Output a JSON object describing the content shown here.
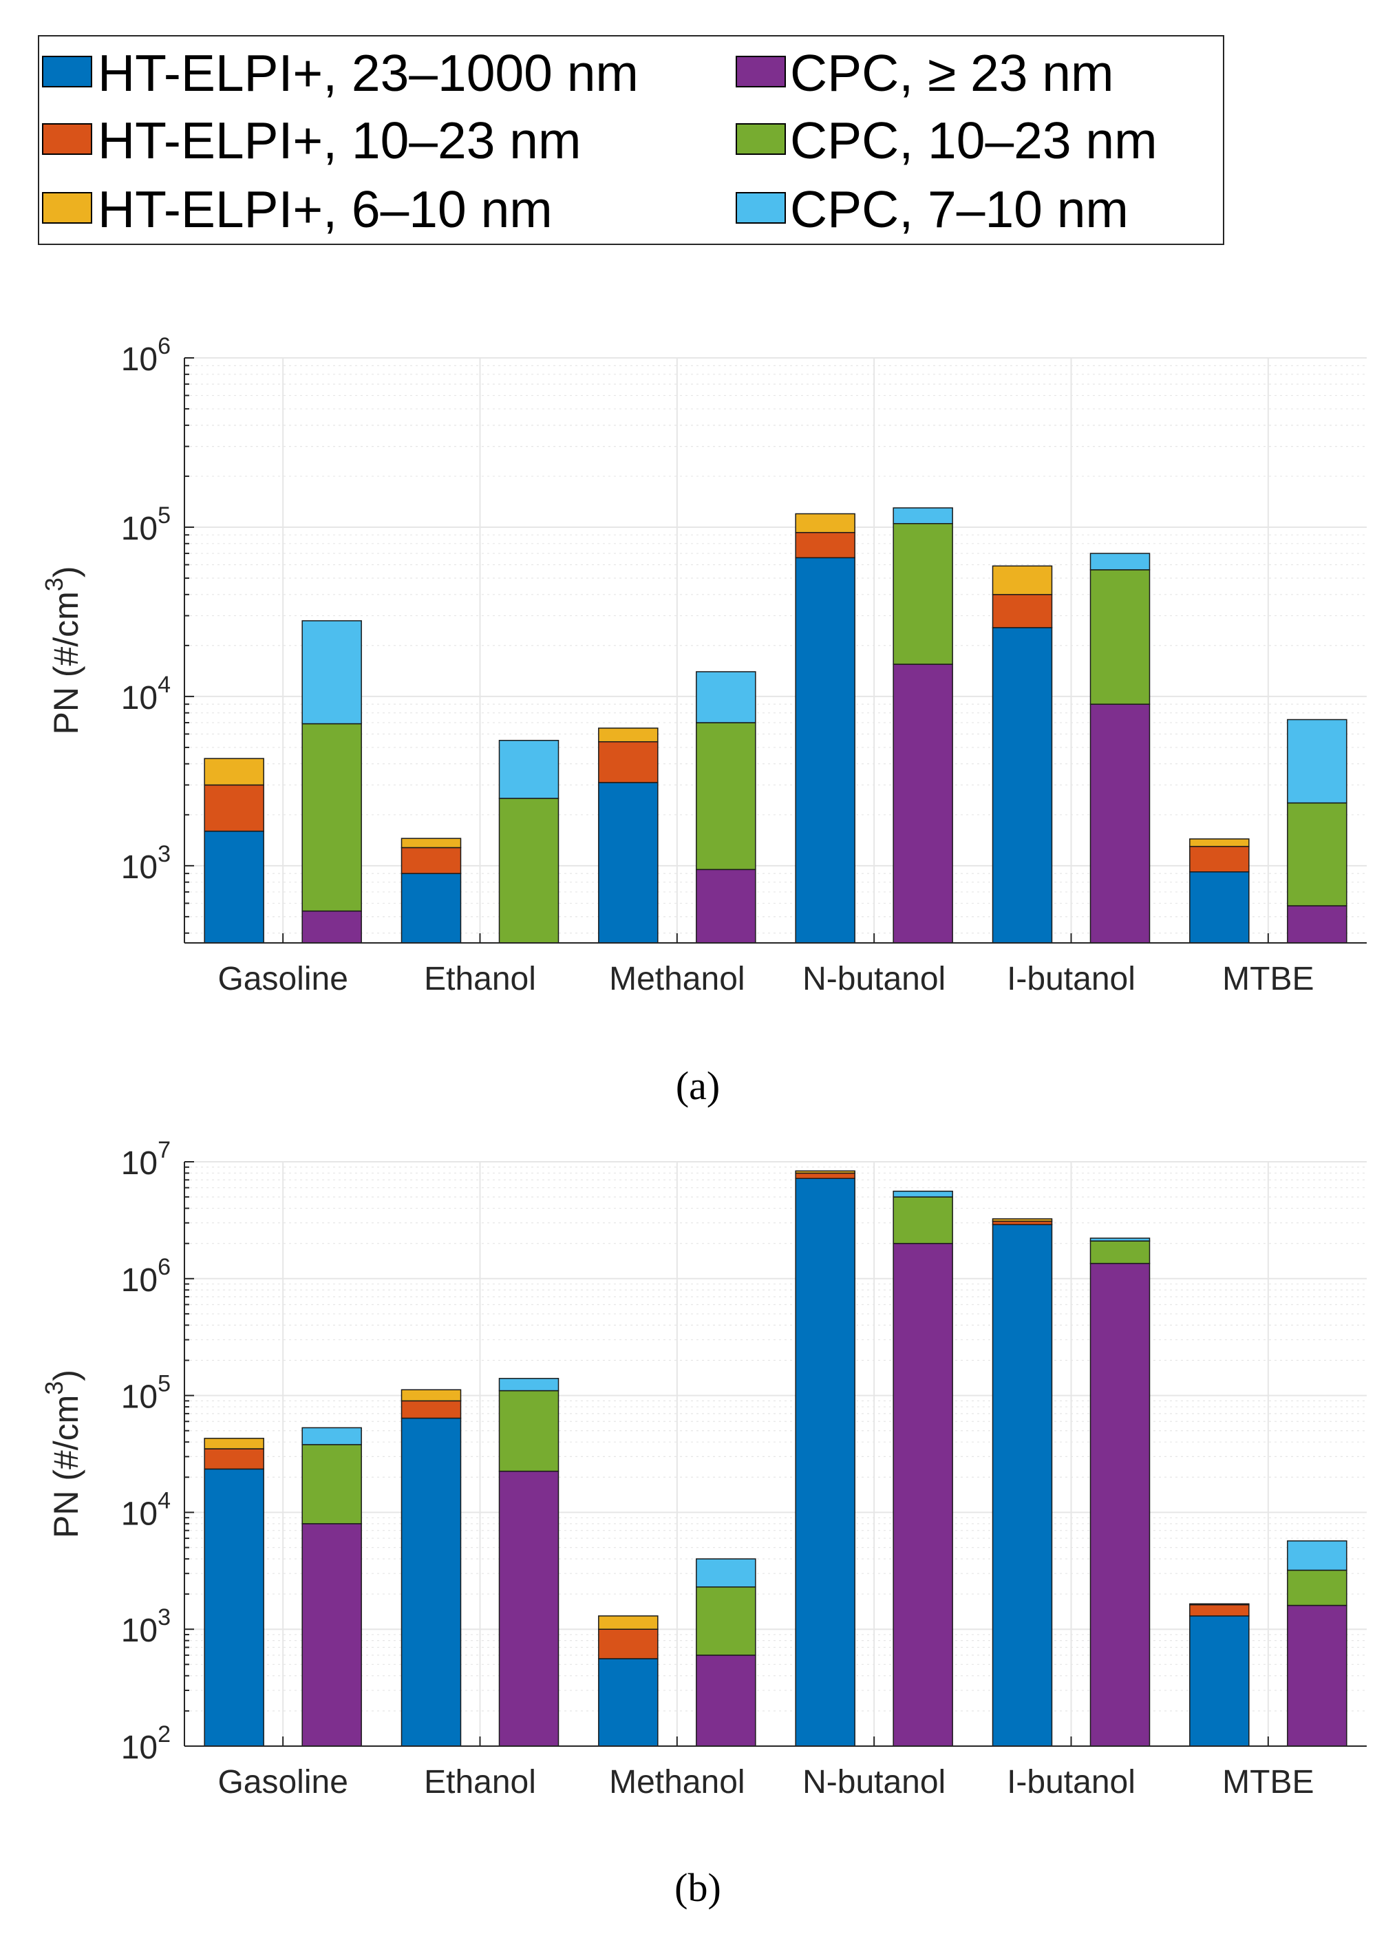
{
  "colors": {
    "elpi_23_1000": "#0072BD",
    "elpi_10_23": "#D95319",
    "elpi_6_10": "#EDB120",
    "cpc_ge23": "#7E2F8E",
    "cpc_10_23": "#77AC30",
    "cpc_7_10": "#4DBEEE",
    "grid": "#E6E6E6",
    "axis": "#262626"
  },
  "legend": {
    "items": [
      {
        "key": "elpi_23_1000",
        "label": "HT-ELPI+, 23–1000 nm"
      },
      {
        "key": "elpi_10_23",
        "label": "HT-ELPI+, 10–23 nm"
      },
      {
        "key": "elpi_6_10",
        "label": "HT-ELPI+, 6–10 nm"
      },
      {
        "key": "cpc_ge23",
        "label": "CPC, ≥ 23 nm"
      },
      {
        "key": "cpc_10_23",
        "label": "CPC, 10–23 nm"
      },
      {
        "key": "cpc_7_10",
        "label": "CPC, 7–10 nm"
      }
    ]
  },
  "chart_data": [
    {
      "type": "bar",
      "stacked": true,
      "yscale": "log",
      "panel_label": "(a)",
      "ylabel": "PN (#/cm",
      "ylabel_sup": "3",
      "ylabel_close": ")",
      "ylim": [
        350,
        1000000
      ],
      "yticks": [
        {
          "value": 1000,
          "base": "10",
          "exp": "3"
        },
        {
          "value": 10000,
          "base": "10",
          "exp": "4"
        },
        {
          "value": 100000,
          "base": "10",
          "exp": "5"
        },
        {
          "value": 1000000,
          "base": "10",
          "exp": "6"
        }
      ],
      "categories": [
        "Gasoline",
        "Ethanol",
        "Methanol",
        "N-butanol",
        "I-butanol",
        "MTBE"
      ],
      "elpi": {
        "series": [
          {
            "key": "elpi_23_1000",
            "name": "HT-ELPI+, 23–1000 nm",
            "values": [
              1600,
              900,
              3100,
              66000,
              25500,
              920
            ]
          },
          {
            "key": "elpi_10_23",
            "name": "HT-ELPI+, 10–23 nm",
            "values": [
              1400,
              380,
              2300,
              27000,
              14500,
              380
            ]
          },
          {
            "key": "elpi_6_10",
            "name": "HT-ELPI+, 6–10 nm",
            "values": [
              1300,
              170,
              1100,
              27000,
              19000,
              140
            ]
          }
        ]
      },
      "cpc": {
        "series": [
          {
            "key": "cpc_ge23",
            "name": "CPC, ≥ 23 nm",
            "values": [
              540,
              0,
              950,
              15500,
              9000,
              580
            ]
          },
          {
            "key": "cpc_10_23",
            "name": "CPC, 10–23 nm",
            "values": [
              6360,
              2500,
              6050,
              89500,
              47000,
              1770
            ]
          },
          {
            "key": "cpc_7_10",
            "name": "CPC, 7–10 nm",
            "values": [
              21100,
              3000,
              7000,
              25000,
              14000,
              4950
            ]
          }
        ]
      }
    },
    {
      "type": "bar",
      "stacked": true,
      "yscale": "log",
      "panel_label": "(b)",
      "ylabel": "PN (#/cm",
      "ylabel_sup": "3",
      "ylabel_close": ")",
      "ylim": [
        100,
        10000000
      ],
      "yticks": [
        {
          "value": 100,
          "base": "10",
          "exp": "2"
        },
        {
          "value": 1000,
          "base": "10",
          "exp": "3"
        },
        {
          "value": 10000,
          "base": "10",
          "exp": "4"
        },
        {
          "value": 100000,
          "base": "10",
          "exp": "5"
        },
        {
          "value": 1000000,
          "base": "10",
          "exp": "6"
        },
        {
          "value": 10000000,
          "base": "10",
          "exp": "7"
        }
      ],
      "categories": [
        "Gasoline",
        "Ethanol",
        "Methanol",
        "N-butanol",
        "I-butanol",
        "MTBE"
      ],
      "elpi": {
        "series": [
          {
            "key": "elpi_23_1000",
            "name": "HT-ELPI+, 23–1000 nm",
            "values": [
              23500,
              64000,
              560,
              7200000,
              2900000,
              1300
            ]
          },
          {
            "key": "elpi_10_23",
            "name": "HT-ELPI+, 10–23 nm",
            "values": [
              11500,
              26000,
              440,
              800000,
              200000,
              320
            ]
          },
          {
            "key": "elpi_6_10",
            "name": "HT-ELPI+, 6–10 nm",
            "values": [
              8000,
              22000,
              300,
              350000,
              150000,
              30
            ]
          }
        ]
      },
      "cpc": {
        "series": [
          {
            "key": "cpc_ge23",
            "name": "CPC, ≥ 23 nm",
            "values": [
              8000,
              22500,
              600,
              2000000,
              1350000,
              1600
            ]
          },
          {
            "key": "cpc_10_23",
            "name": "CPC, 10–23 nm",
            "values": [
              30000,
              87500,
              1700,
              3000000,
              750000,
              1600
            ]
          },
          {
            "key": "cpc_7_10",
            "name": "CPC, 7–10 nm",
            "values": [
              15000,
              30000,
              1700,
              600000,
              120000,
              2500
            ]
          }
        ]
      }
    }
  ]
}
